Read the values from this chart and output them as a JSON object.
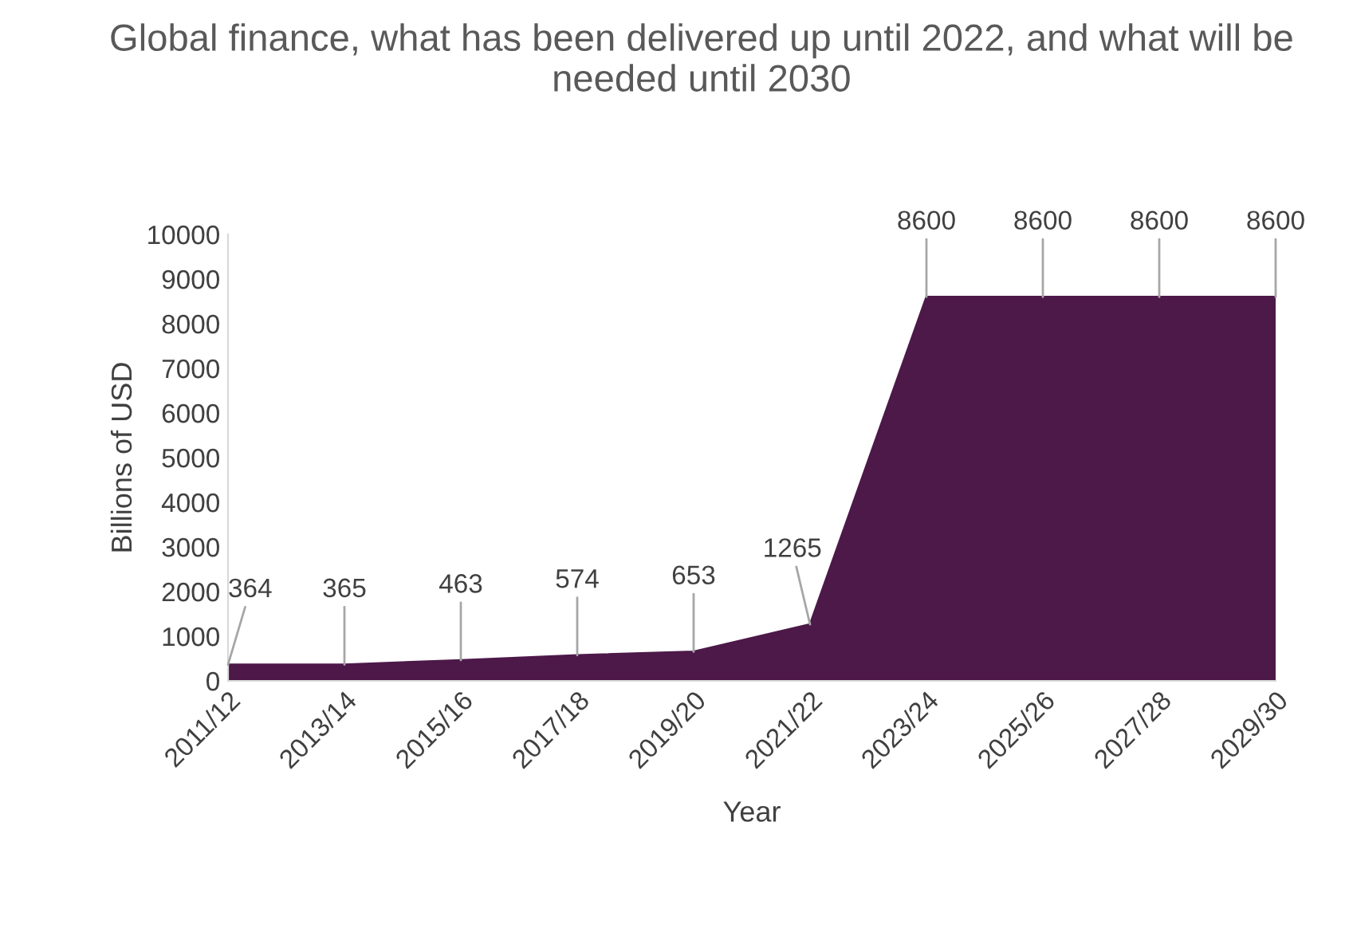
{
  "chart_data": {
    "type": "area",
    "title": "Global finance, what has been delivered up until 2022, and what will be needed until 2030",
    "xlabel": "Year",
    "ylabel": "Billions of USD",
    "categories": [
      "2011/12",
      "2013/14",
      "2015/16",
      "2017/18",
      "2019/20",
      "2021/22",
      "2023/24",
      "2025/26",
      "2027/28",
      "2029/30"
    ],
    "series": [
      {
        "color": "#4d1949",
        "values": [
          364,
          365,
          463,
          574,
          653,
          1265,
          8600,
          8600,
          8600,
          8600
        ]
      }
    ],
    "ylim": [
      0,
      10000
    ],
    "yticks": [
      0,
      1000,
      2000,
      3000,
      4000,
      5000,
      6000,
      7000,
      8000,
      9000,
      10000
    ],
    "data_labels": true,
    "grid": false
  }
}
